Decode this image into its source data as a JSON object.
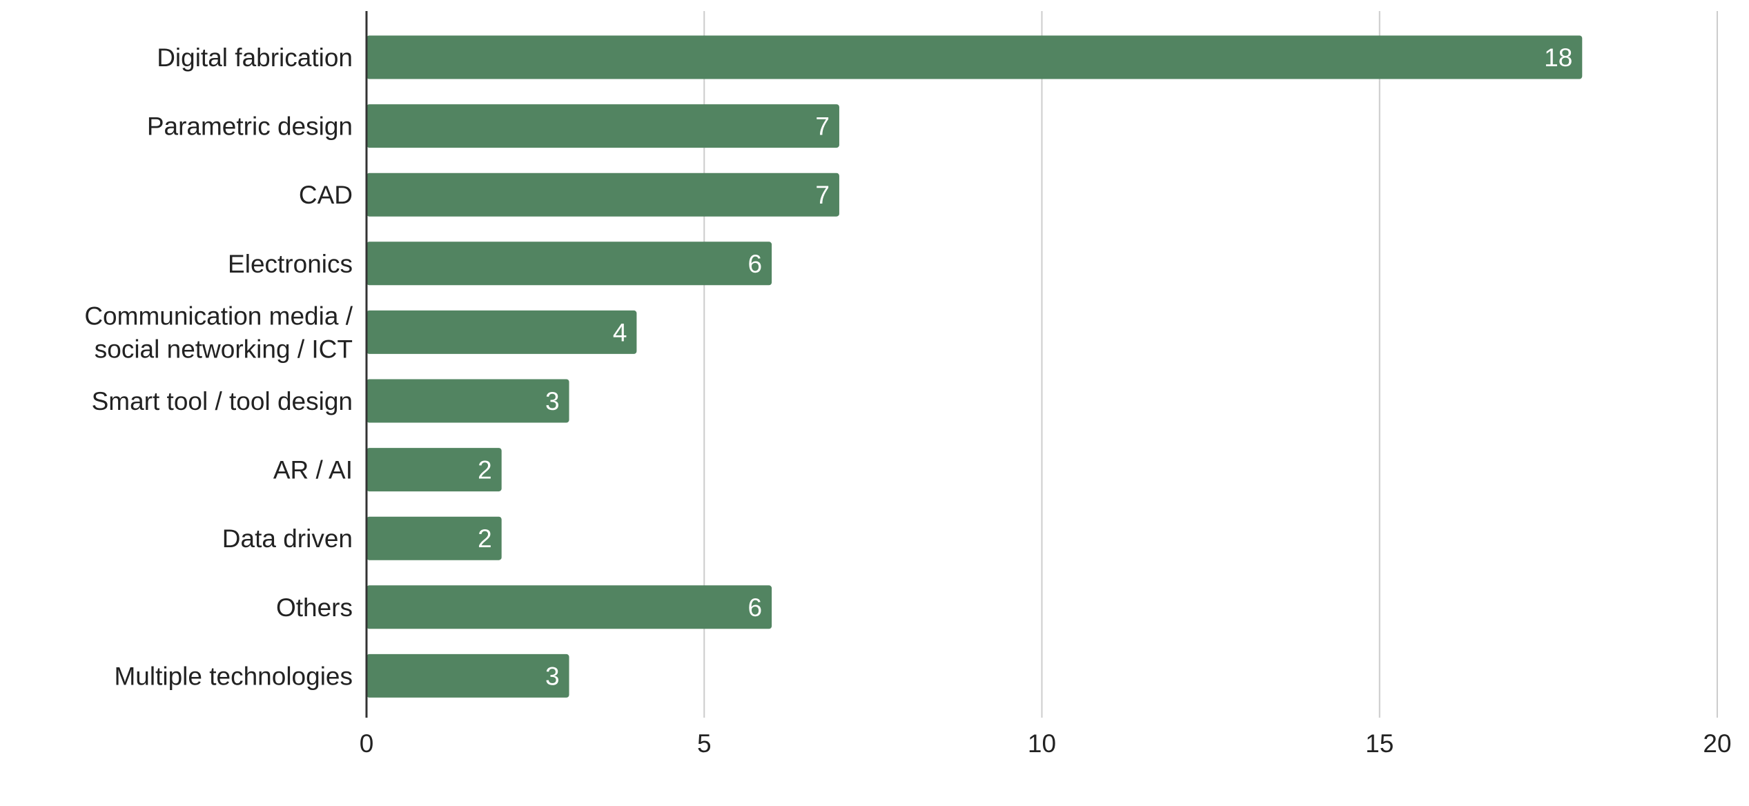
{
  "chart_data": {
    "type": "bar",
    "orientation": "horizontal",
    "title": "",
    "xlabel": "",
    "ylabel": "",
    "categories": [
      [
        "Digital fabrication"
      ],
      [
        "Parametric design"
      ],
      [
        "CAD"
      ],
      [
        "Electronics"
      ],
      [
        "Communication media /",
        "social networking / ICT"
      ],
      [
        "Smart tool / tool design"
      ],
      [
        "AR / AI"
      ],
      [
        "Data driven"
      ],
      [
        "Others"
      ],
      [
        "Multiple technologies"
      ]
    ],
    "values": [
      18,
      7,
      7,
      6,
      4,
      3,
      2,
      2,
      6,
      3
    ],
    "data_labels": [
      "18",
      "7",
      "7",
      "6",
      "4",
      "3",
      "2",
      "2",
      "6",
      "3"
    ],
    "xlim": [
      0,
      20
    ],
    "xticks": [
      0,
      5,
      10,
      15,
      20
    ],
    "xtick_labels": [
      "0",
      "5",
      "10",
      "15",
      "20"
    ],
    "grid": "vertical",
    "legend": "none",
    "colors": {
      "bar": "#528461",
      "grid": "#cccccc",
      "axis": "#333333",
      "label_text": "#222222",
      "data_label_text": "#ffffff"
    }
  }
}
